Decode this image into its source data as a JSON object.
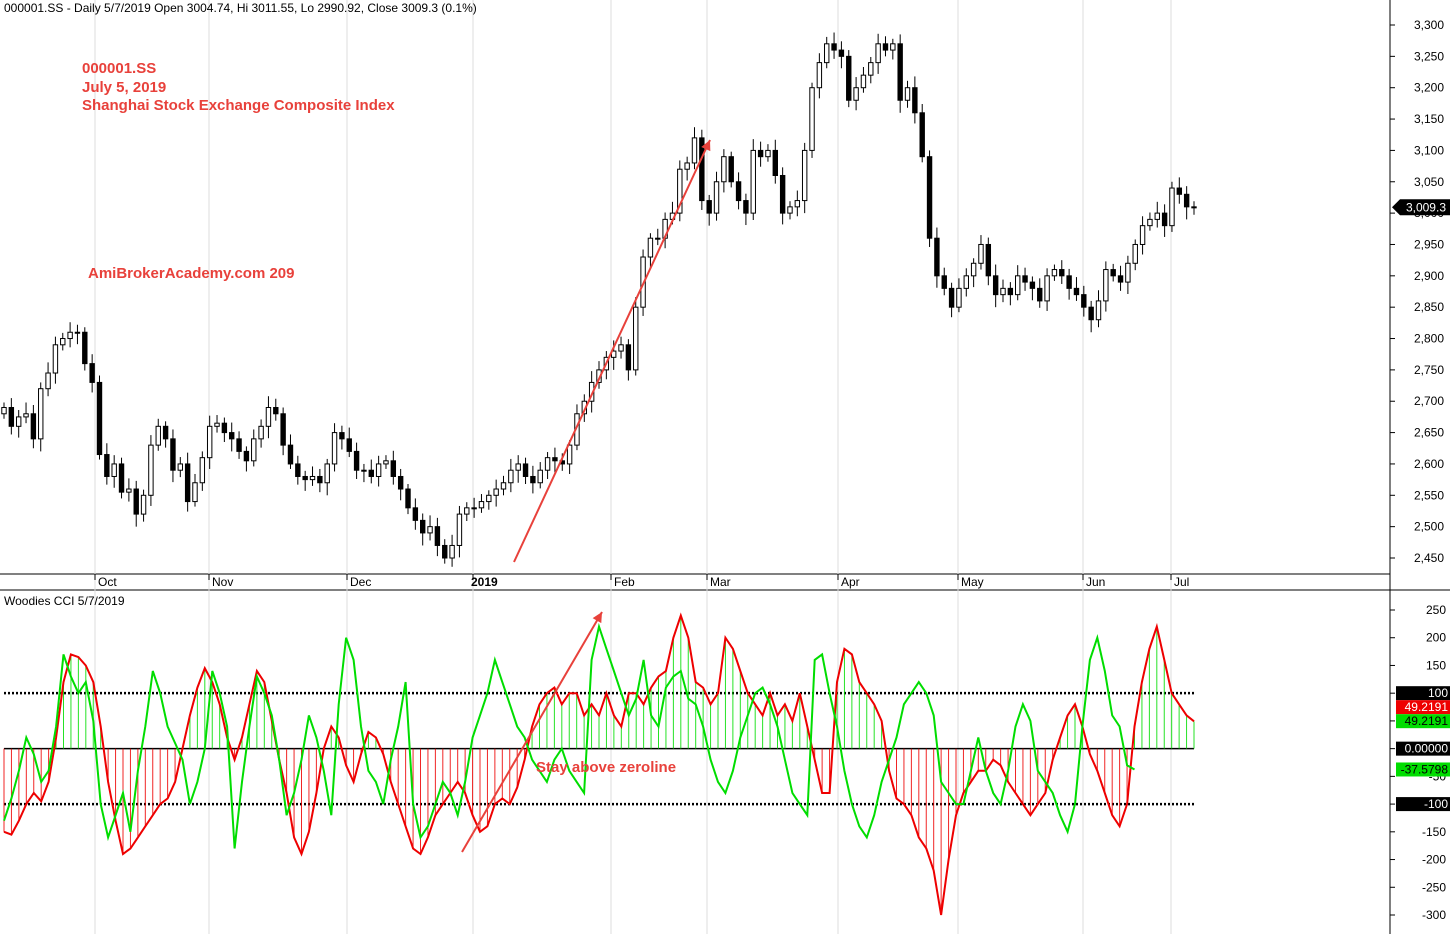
{
  "header": {
    "price_title": "000001.SS - Daily 5/7/2019 Open 3004.74, Hi 3011.55, Lo 2990.92, Close 3009.3 (0.1%)",
    "indicator_title": "Woodies CCI  5/7/2019"
  },
  "annotations": {
    "symbol": "000001.SS",
    "date": "July 5, 2019",
    "index_name": "Shanghai Stock Exchange Composite Index",
    "watermark": "AmiBrokerAcademy.com  209",
    "zeroline_note": "Stay above zeroline"
  },
  "colors": {
    "up_candle_fill": "#ffffff",
    "down_candle_fill": "#000000",
    "cci_fast": "#00dd00",
    "cci_slow": "#ee0000",
    "annotation": "#e8413b",
    "grid": "#dddddd"
  },
  "chart_data": [
    {
      "type": "candlestick",
      "title": "000001.SS - Daily 5/7/2019 Open 3004.74, Hi 3011.55, Lo 2990.92, Close 3009.3 (0.1%)",
      "x_labels": [
        "Oct",
        "Nov",
        "Dec",
        "2019",
        "Feb",
        "Mar",
        "Apr",
        "May",
        "Jun",
        "Jul"
      ],
      "y_ticks": [
        "2,450",
        "2,500",
        "2,550",
        "2,600",
        "2,650",
        "2,700",
        "2,750",
        "2,800",
        "2,850",
        "2,900",
        "2,950",
        "3,000",
        "3,050",
        "3,100",
        "3,150",
        "3,200",
        "3,250",
        "3,300"
      ],
      "ylim": [
        2420,
        3330
      ],
      "last_close_label": "3,009.3",
      "series_close": [
        2690,
        2660,
        2675,
        2680,
        2640,
        2720,
        2745,
        2790,
        2800,
        2810,
        2810,
        2760,
        2730,
        2615,
        2580,
        2600,
        2555,
        2560,
        2520,
        2550,
        2630,
        2660,
        2640,
        2590,
        2600,
        2540,
        2570,
        2610,
        2660,
        2665,
        2650,
        2640,
        2620,
        2605,
        2640,
        2660,
        2690,
        2680,
        2630,
        2600,
        2580,
        2575,
        2580,
        2570,
        2600,
        2650,
        2640,
        2620,
        2590,
        2590,
        2580,
        2600,
        2605,
        2580,
        2560,
        2530,
        2510,
        2490,
        2500,
        2470,
        2450,
        2470,
        2520,
        2530,
        2530,
        2540,
        2550,
        2560,
        2570,
        2590,
        2600,
        2580,
        2570,
        2590,
        2610,
        2605,
        2600,
        2630,
        2680,
        2700,
        2730,
        2750,
        2770,
        2780,
        2790,
        2750,
        2850,
        2930,
        2960,
        2960,
        2990,
        3000,
        3070,
        3080,
        3120,
        3020,
        3000,
        3050,
        3090,
        3050,
        3020,
        3000,
        3100,
        3090,
        3100,
        3060,
        3000,
        3010,
        3020,
        3100,
        3200,
        3240,
        3270,
        3260,
        3250,
        3180,
        3200,
        3220,
        3240,
        3270,
        3260,
        3270,
        3180,
        3200,
        3160,
        3090,
        2960,
        2900,
        2880,
        2850,
        2880,
        2900,
        2920,
        2950,
        2900,
        2870,
        2880,
        2870,
        2900,
        2890,
        2880,
        2860,
        2900,
        2910,
        2900,
        2880,
        2870,
        2850,
        2830,
        2860,
        2910,
        2900,
        2890,
        2920,
        2950,
        2980,
        2990,
        3000,
        2980,
        3040,
        3030,
        3010,
        3009.3
      ]
    },
    {
      "type": "line",
      "title": "Woodies CCI  5/7/2019",
      "y_ticks": [
        "250",
        "200",
        "150",
        "100",
        "50",
        "0",
        "-50",
        "-100",
        "-150",
        "-200",
        "-250",
        "-300"
      ],
      "ylim": [
        -315,
        265
      ],
      "reference_lines": [
        100,
        0,
        -100
      ],
      "value_labels": [
        "100",
        "49.2191",
        "49.2191",
        "0.00000",
        "-37.5798",
        "-100"
      ],
      "series": [
        {
          "color_role": "slow (red)",
          "values": [
            -150,
            -155,
            -130,
            -100,
            -80,
            -95,
            -60,
            20,
            120,
            170,
            165,
            150,
            120,
            40,
            -60,
            -130,
            -190,
            -180,
            -160,
            -140,
            -120,
            -100,
            -90,
            -60,
            0,
            60,
            110,
            145,
            120,
            80,
            20,
            -20,
            20,
            80,
            140,
            120,
            50,
            -20,
            -80,
            -160,
            -190,
            -150,
            -80,
            0,
            40,
            20,
            -30,
            -60,
            -10,
            30,
            20,
            -10,
            -60,
            -100,
            -140,
            -180,
            -190,
            -160,
            -120,
            -100,
            -80,
            -60,
            -80,
            -120,
            -150,
            -140,
            -100,
            -90,
            -100,
            -70,
            -20,
            40,
            80,
            100,
            110,
            80,
            100,
            100,
            60,
            80,
            60,
            100,
            60,
            40,
            100,
            100,
            80,
            110,
            130,
            140,
            200,
            240,
            200,
            120,
            110,
            80,
            100,
            200,
            180,
            140,
            100,
            80,
            60,
            100,
            60,
            80,
            50,
            100,
            40,
            -20,
            -80,
            -80,
            120,
            180,
            170,
            120,
            100,
            80,
            50,
            -40,
            -90,
            -100,
            -120,
            -160,
            -180,
            -220,
            -300,
            -200,
            -120,
            -80,
            -60,
            -40,
            -40,
            -20,
            -30,
            -60,
            -80,
            -100,
            -120,
            -100,
            -80,
            -20,
            20,
            60,
            80,
            40,
            -10,
            -40,
            -80,
            -120,
            -140,
            -100,
            40,
            120,
            180,
            220,
            160,
            100,
            80,
            60,
            49.2191
          ]
        },
        {
          "color_role": "fast (green)",
          "values": [
            -130,
            -90,
            -40,
            20,
            -10,
            -60,
            -40,
            40,
            170,
            130,
            100,
            120,
            50,
            -100,
            -160,
            -120,
            -80,
            -150,
            -40,
            40,
            140,
            100,
            40,
            10,
            -20,
            -100,
            -60,
            0,
            140,
            100,
            40,
            -180,
            -60,
            40,
            130,
            100,
            60,
            -20,
            -120,
            -80,
            -20,
            60,
            20,
            -40,
            -120,
            80,
            200,
            160,
            40,
            -40,
            -60,
            -100,
            -20,
            40,
            120,
            -100,
            -160,
            -140,
            -100,
            -60,
            -80,
            -120,
            -60,
            20,
            60,
            100,
            160,
            120,
            80,
            40,
            20,
            -20,
            -40,
            -60,
            -20,
            0,
            -40,
            -60,
            -80,
            160,
            220,
            180,
            140,
            100,
            60,
            90,
            160,
            60,
            40,
            110,
            130,
            140,
            90,
            80,
            40,
            -20,
            -60,
            -80,
            -40,
            20,
            60,
            100,
            110,
            80,
            40,
            -20,
            -80,
            -100,
            -120,
            160,
            170,
            100,
            40,
            -40,
            -100,
            -140,
            -160,
            -120,
            -60,
            -20,
            20,
            80,
            100,
            120,
            100,
            60,
            -60,
            -80,
            -100,
            -100,
            -40,
            20,
            -40,
            -80,
            -100,
            -40,
            40,
            80,
            50,
            -40,
            -60,
            -80,
            -120,
            -150,
            -100,
            40,
            160,
            200,
            140,
            60,
            40,
            -30,
            -37.5798
          ]
        }
      ]
    }
  ]
}
